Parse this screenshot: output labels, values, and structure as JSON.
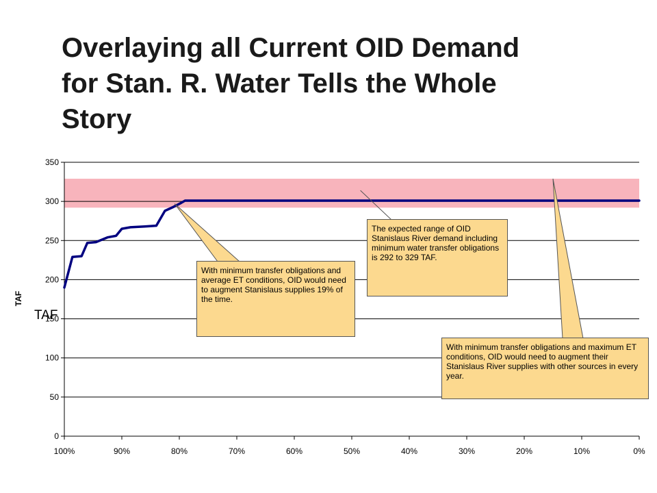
{
  "slide": {
    "title_line1": "Overlaying all Current OID Demand",
    "title_line2": "for Stan. R. Water Tells the Whole",
    "title_line3": "Story",
    "overlay_label": "TAF"
  },
  "chart_data": {
    "type": "line",
    "title": "",
    "xlabel": "",
    "ylabel": "TAF",
    "x_reversed": true,
    "xlim": [
      100,
      0
    ],
    "ylim": [
      0,
      350
    ],
    "x_ticks": [
      100,
      90,
      80,
      70,
      60,
      50,
      40,
      30,
      20,
      10,
      0
    ],
    "x_tick_labels": [
      "100%",
      "90%",
      "80%",
      "70%",
      "60%",
      "50%",
      "40%",
      "30%",
      "20%",
      "10%",
      "0%"
    ],
    "y_ticks": [
      0,
      50,
      100,
      150,
      200,
      250,
      300,
      350
    ],
    "y_tick_labels": [
      "0",
      "50",
      "100",
      "150",
      "200",
      "250",
      "300",
      "350"
    ],
    "grid": "horizontal",
    "series": [
      {
        "name": "",
        "color": "#000080",
        "x": [
          100,
          98.6,
          97,
          96,
          94.5,
          92.5,
          91,
          90,
          88.5,
          86,
          84,
          82.5,
          81,
          79.7,
          79,
          0
        ],
        "y": [
          190,
          229,
          230,
          247,
          248,
          254,
          256,
          265,
          267,
          268,
          269,
          288,
          293,
          298,
          301,
          301
        ]
      }
    ],
    "band": {
      "y_min": 292,
      "y_max": 329,
      "color": "#f8b4bc"
    },
    "annotations": [
      {
        "text": "With minimum transfer obligations and average ET conditions, OID would need to augment Stanislaus supplies 19% of the time.",
        "point_x": 80.8,
        "point_y": 297
      },
      {
        "text": "The expected range of OID Stanislaus River demand including minimum water transfer obligations is 292 to 329 TAF.",
        "point_x": 48.5,
        "point_y": 314
      },
      {
        "text": "With minimum transfer obligations and maximum ET conditions, OID would need to augment their Stanislaus River supplies with other sources in every year.",
        "point_x": 15,
        "point_y": 329
      }
    ]
  }
}
